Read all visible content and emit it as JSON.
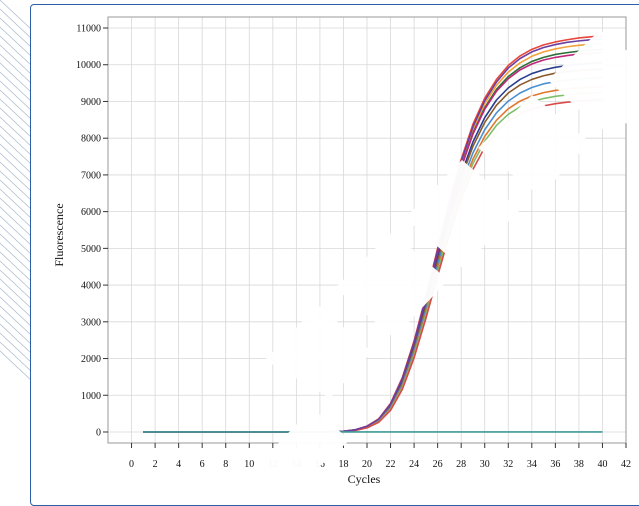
{
  "chart_data": {
    "type": "line",
    "title": "",
    "xlabel": "Cycles",
    "ylabel": "Fluorescence",
    "xlim": [
      -2,
      42
    ],
    "ylim": [
      -300,
      11300
    ],
    "x_ticks": [
      0,
      2,
      4,
      6,
      8,
      10,
      12,
      14,
      16,
      18,
      20,
      22,
      24,
      26,
      28,
      30,
      32,
      34,
      36,
      38,
      40,
      42
    ],
    "y_ticks": [
      0,
      1000,
      2000,
      3000,
      4000,
      5000,
      6000,
      7000,
      8000,
      9000,
      10000,
      11000
    ],
    "x_tick_labels": [
      "0",
      "2",
      "4",
      "6",
      "8",
      "10",
      "12",
      "14",
      "16",
      "18",
      "20",
      "22",
      "24",
      "26",
      "28",
      "30",
      "32",
      "34",
      "36",
      "38",
      "40",
      "42"
    ],
    "y_tick_labels": [
      "0",
      "1000",
      "2000",
      "3000",
      "4000",
      "5000",
      "6000",
      "7000",
      "8000",
      "9000",
      "10000",
      "11000"
    ],
    "grid": true,
    "legend": "none",
    "x": [
      1,
      2,
      3,
      4,
      5,
      6,
      7,
      8,
      9,
      10,
      11,
      12,
      13,
      14,
      15,
      16,
      17,
      18,
      19,
      20,
      21,
      22,
      23,
      24,
      25,
      26,
      27,
      28,
      29,
      30,
      31,
      32,
      33,
      34,
      35,
      36,
      37,
      38,
      39,
      40
    ],
    "series": [
      {
        "color": "#e8463a",
        "values": [
          0,
          0,
          0,
          0,
          0,
          0,
          0,
          0,
          0,
          0,
          0,
          0,
          0,
          0,
          0,
          0,
          5,
          20,
          60,
          160,
          360,
          780,
          1480,
          2480,
          3700,
          5000,
          6280,
          7420,
          8380,
          9090,
          9600,
          9980,
          10240,
          10420,
          10540,
          10620,
          10680,
          10730,
          10760,
          10790
        ]
      },
      {
        "color": "#f2a23a",
        "values": [
          0,
          0,
          0,
          0,
          0,
          0,
          0,
          0,
          0,
          0,
          0,
          0,
          0,
          0,
          0,
          0,
          5,
          20,
          58,
          150,
          340,
          740,
          1420,
          2400,
          3600,
          4900,
          6160,
          7300,
          8240,
          8940,
          9440,
          9800,
          10050,
          10230,
          10350,
          10430,
          10490,
          10530,
          10560,
          10580
        ]
      },
      {
        "color": "#2e6f3a",
        "values": [
          0,
          0,
          0,
          0,
          0,
          0,
          0,
          0,
          0,
          0,
          0,
          0,
          0,
          0,
          0,
          0,
          5,
          18,
          55,
          145,
          330,
          720,
          1390,
          2360,
          3550,
          4840,
          6090,
          7210,
          8140,
          8830,
          9330,
          9680,
          9920,
          10090,
          10200,
          10280,
          10330,
          10370,
          10400,
          10420
        ]
      },
      {
        "color": "#c0277a",
        "values": [
          0,
          0,
          0,
          0,
          0,
          0,
          0,
          0,
          0,
          0,
          0,
          0,
          0,
          0,
          0,
          0,
          5,
          19,
          57,
          148,
          335,
          730,
          1400,
          2380,
          3570,
          4860,
          6100,
          7200,
          8110,
          8790,
          9280,
          9620,
          9860,
          10020,
          10130,
          10200,
          10250,
          10290,
          10310,
          10330
        ]
      },
      {
        "color": "#2a3f8f",
        "values": [
          0,
          0,
          0,
          0,
          0,
          0,
          0,
          0,
          0,
          0,
          0,
          0,
          0,
          0,
          0,
          0,
          5,
          18,
          54,
          140,
          320,
          700,
          1350,
          2300,
          3460,
          4720,
          5940,
          7020,
          7900,
          8560,
          9040,
          9370,
          9600,
          9760,
          9860,
          9930,
          9980,
          10010,
          10040,
          10060
        ]
      },
      {
        "color": "#8a5a2b",
        "values": [
          0,
          0,
          0,
          0,
          0,
          0,
          0,
          0,
          0,
          0,
          0,
          0,
          0,
          0,
          0,
          0,
          5,
          18,
          52,
          135,
          310,
          680,
          1320,
          2260,
          3410,
          4650,
          5850,
          6910,
          7780,
          8430,
          8900,
          9230,
          9450,
          9600,
          9700,
          9770,
          9810,
          9840,
          9860,
          9880
        ]
      },
      {
        "color": "#4a8fd0",
        "values": [
          0,
          0,
          0,
          0,
          0,
          0,
          0,
          0,
          0,
          0,
          0,
          0,
          0,
          0,
          0,
          0,
          4,
          16,
          50,
          130,
          300,
          660,
          1280,
          2190,
          3310,
          4530,
          5710,
          6750,
          7600,
          8230,
          8690,
          9010,
          9230,
          9380,
          9480,
          9540,
          9580,
          9610,
          9630,
          9650
        ]
      },
      {
        "color": "#e0772e",
        "values": [
          0,
          0,
          0,
          0,
          0,
          0,
          0,
          0,
          0,
          0,
          0,
          0,
          0,
          0,
          0,
          0,
          4,
          15,
          46,
          122,
          284,
          630,
          1230,
          2120,
          3220,
          4420,
          5580,
          6600,
          7430,
          8050,
          8490,
          8800,
          9010,
          9150,
          9240,
          9300,
          9340,
          9370,
          9390,
          9400
        ]
      },
      {
        "color": "#7fbf6a",
        "values": [
          0,
          0,
          0,
          0,
          0,
          0,
          0,
          0,
          0,
          0,
          0,
          0,
          0,
          0,
          0,
          0,
          4,
          15,
          45,
          118,
          276,
          612,
          1200,
          2080,
          3170,
          4350,
          5490,
          6490,
          7310,
          7920,
          8350,
          8650,
          8850,
          8990,
          9080,
          9140,
          9180,
          9210,
          9230,
          9240
        ]
      },
      {
        "color": "#d94a4a",
        "values": [
          0,
          0,
          0,
          0,
          0,
          0,
          0,
          0,
          0,
          0,
          0,
          0,
          0,
          0,
          0,
          0,
          4,
          14,
          42,
          112,
          265,
          590,
          1160,
          2020,
          3090,
          4250,
          5370,
          6350,
          7150,
          7750,
          8170,
          8460,
          8660,
          8790,
          8880,
          8940,
          8980,
          9010,
          9030,
          9050
        ]
      },
      {
        "color": "#6b3fa0",
        "values": [
          0,
          0,
          0,
          0,
          0,
          0,
          0,
          0,
          0,
          0,
          0,
          0,
          0,
          0,
          0,
          0,
          5,
          20,
          59,
          155,
          350,
          760,
          1450,
          2440,
          3650,
          4950,
          6220,
          7360,
          8310,
          9020,
          9530,
          9910,
          10170,
          10350,
          10470,
          10550,
          10610,
          10650,
          10680,
          10700
        ]
      },
      {
        "color": "#3f9a9a",
        "values": [
          0,
          0,
          0,
          0,
          0,
          0,
          0,
          0,
          0,
          0,
          0,
          0,
          0,
          0,
          0,
          0,
          0,
          0,
          0,
          0,
          0,
          0,
          0,
          0,
          0,
          0,
          0,
          0,
          0,
          0,
          0,
          0,
          0,
          0,
          0,
          0,
          0,
          0,
          0,
          0
        ]
      }
    ]
  }
}
